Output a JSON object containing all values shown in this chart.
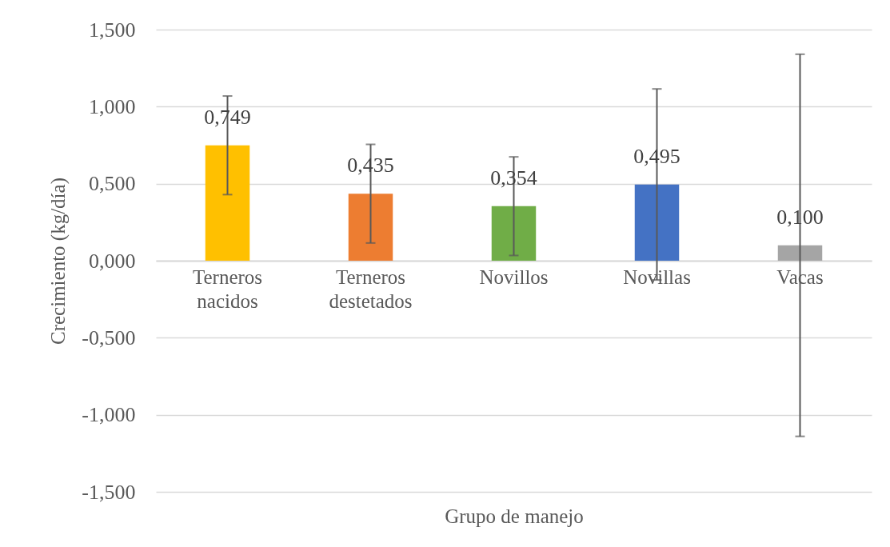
{
  "chart_data": {
    "type": "bar",
    "xlabel": "Grupo  de manejo",
    "ylabel": "Crecimiento  (kg/día)",
    "categories": [
      "Terneros nacidos",
      "Terneros destetados",
      "Novillos",
      "Novillas",
      "Vacas"
    ],
    "values": [
      0.749,
      0.435,
      0.354,
      0.495,
      0.1
    ],
    "colors": [
      "#ffc000",
      "#ed7d31",
      "#70ad47",
      "#4472c4",
      "#a5a5a5"
    ],
    "errors": [
      0.32,
      0.32,
      0.32,
      0.62,
      1.24
    ],
    "value_labels": [
      "0,749",
      "0,435",
      "0,354",
      "0,495",
      "0,100"
    ],
    "ylim": [
      -1.5,
      1.5
    ],
    "yticks": [
      {
        "value": -1.5,
        "label": "-1,500"
      },
      {
        "value": -1,
        "label": "-1,000"
      },
      {
        "value": -0.5,
        "label": "-0,500"
      },
      {
        "value": 0,
        "label": "0,000"
      },
      {
        "value": 0.5,
        "label": "0,500"
      },
      {
        "value": 1,
        "label": "1,000"
      },
      {
        "value": 1.5,
        "label": "1,500"
      }
    ],
    "grid": true
  }
}
